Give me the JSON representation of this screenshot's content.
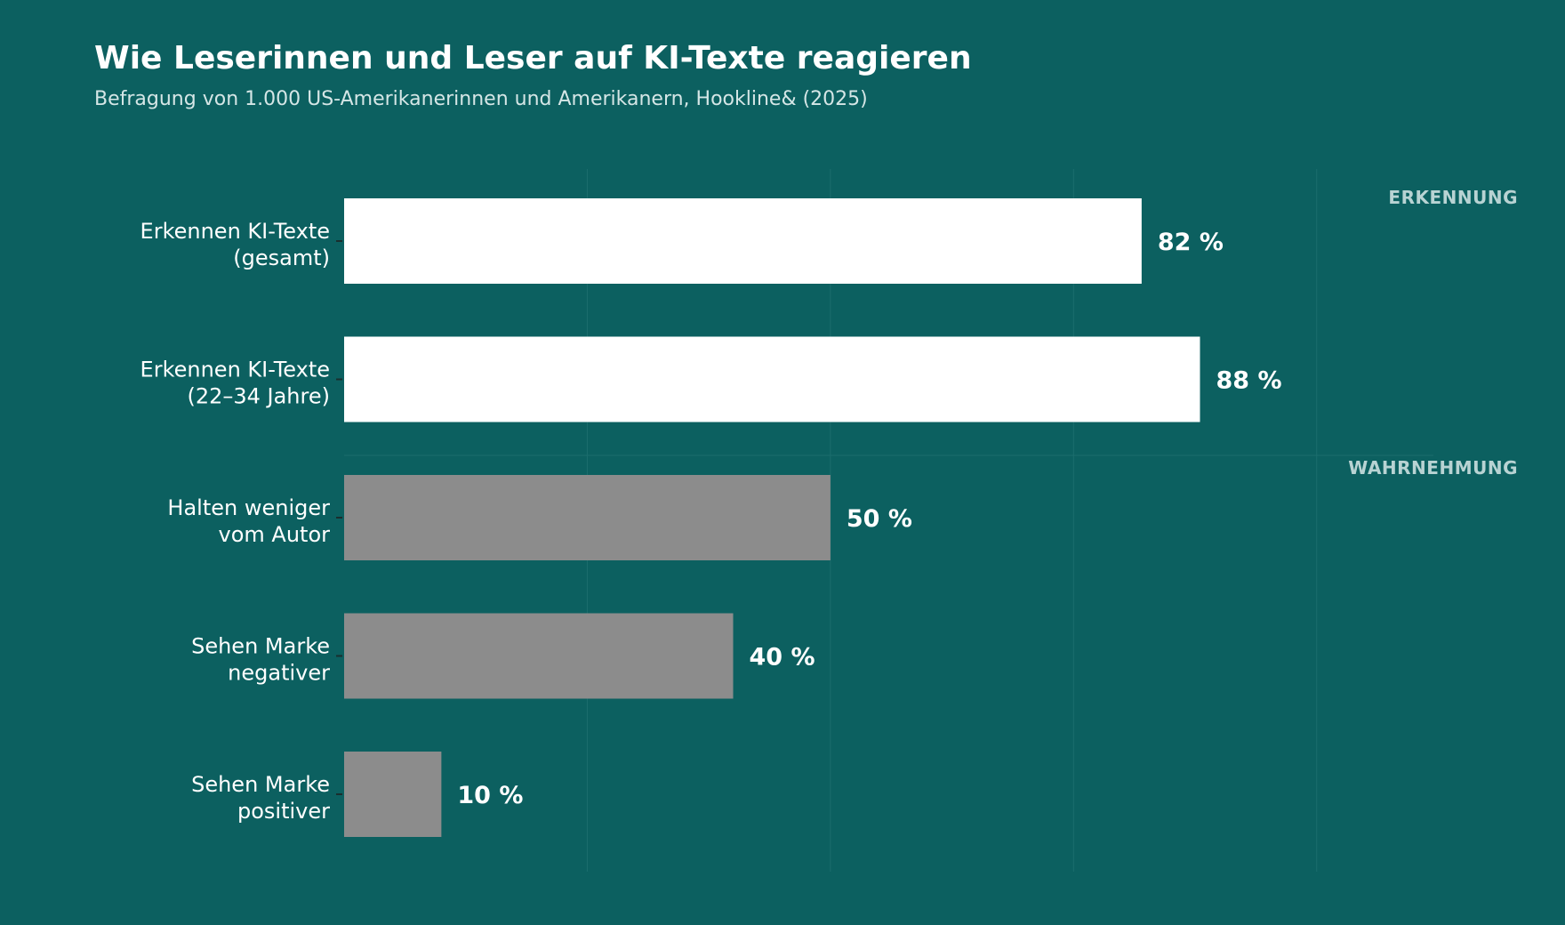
{
  "chart_data": {
    "type": "bar",
    "orientation": "horizontal",
    "title": "Wie Leserinnen und Leser auf KI-Texte reagieren",
    "subtitle": "Befragung von 1.000 US-Amerikanerinnen und Amerikanern, Hookline& (2025)",
    "xlim": [
      0,
      100
    ],
    "grid": true,
    "unit": "%",
    "groups": [
      {
        "label": "ERKENNUNG",
        "color": "#ffffff",
        "indices": [
          0,
          1
        ]
      },
      {
        "label": "WAHRNEHMUNG",
        "color": "#8c8c8c",
        "indices": [
          2,
          3,
          4
        ]
      }
    ],
    "categories": [
      [
        "Erkennen KI-Texte",
        "(gesamt)"
      ],
      [
        "Erkennen KI-Texte",
        "(22–34 Jahre)"
      ],
      [
        "Halten weniger",
        "vom Autor"
      ],
      [
        "Sehen Marke",
        "negativer"
      ],
      [
        "Sehen Marke",
        "positiver"
      ]
    ],
    "values": [
      82,
      88,
      50,
      40,
      10
    ],
    "value_labels": [
      "82 %",
      "88 %",
      "50 %",
      "40 %",
      "10 %"
    ]
  },
  "colors": {
    "background": "#0c6060",
    "gridline": "#1b6d6d",
    "tick": "#1a2e2e"
  }
}
